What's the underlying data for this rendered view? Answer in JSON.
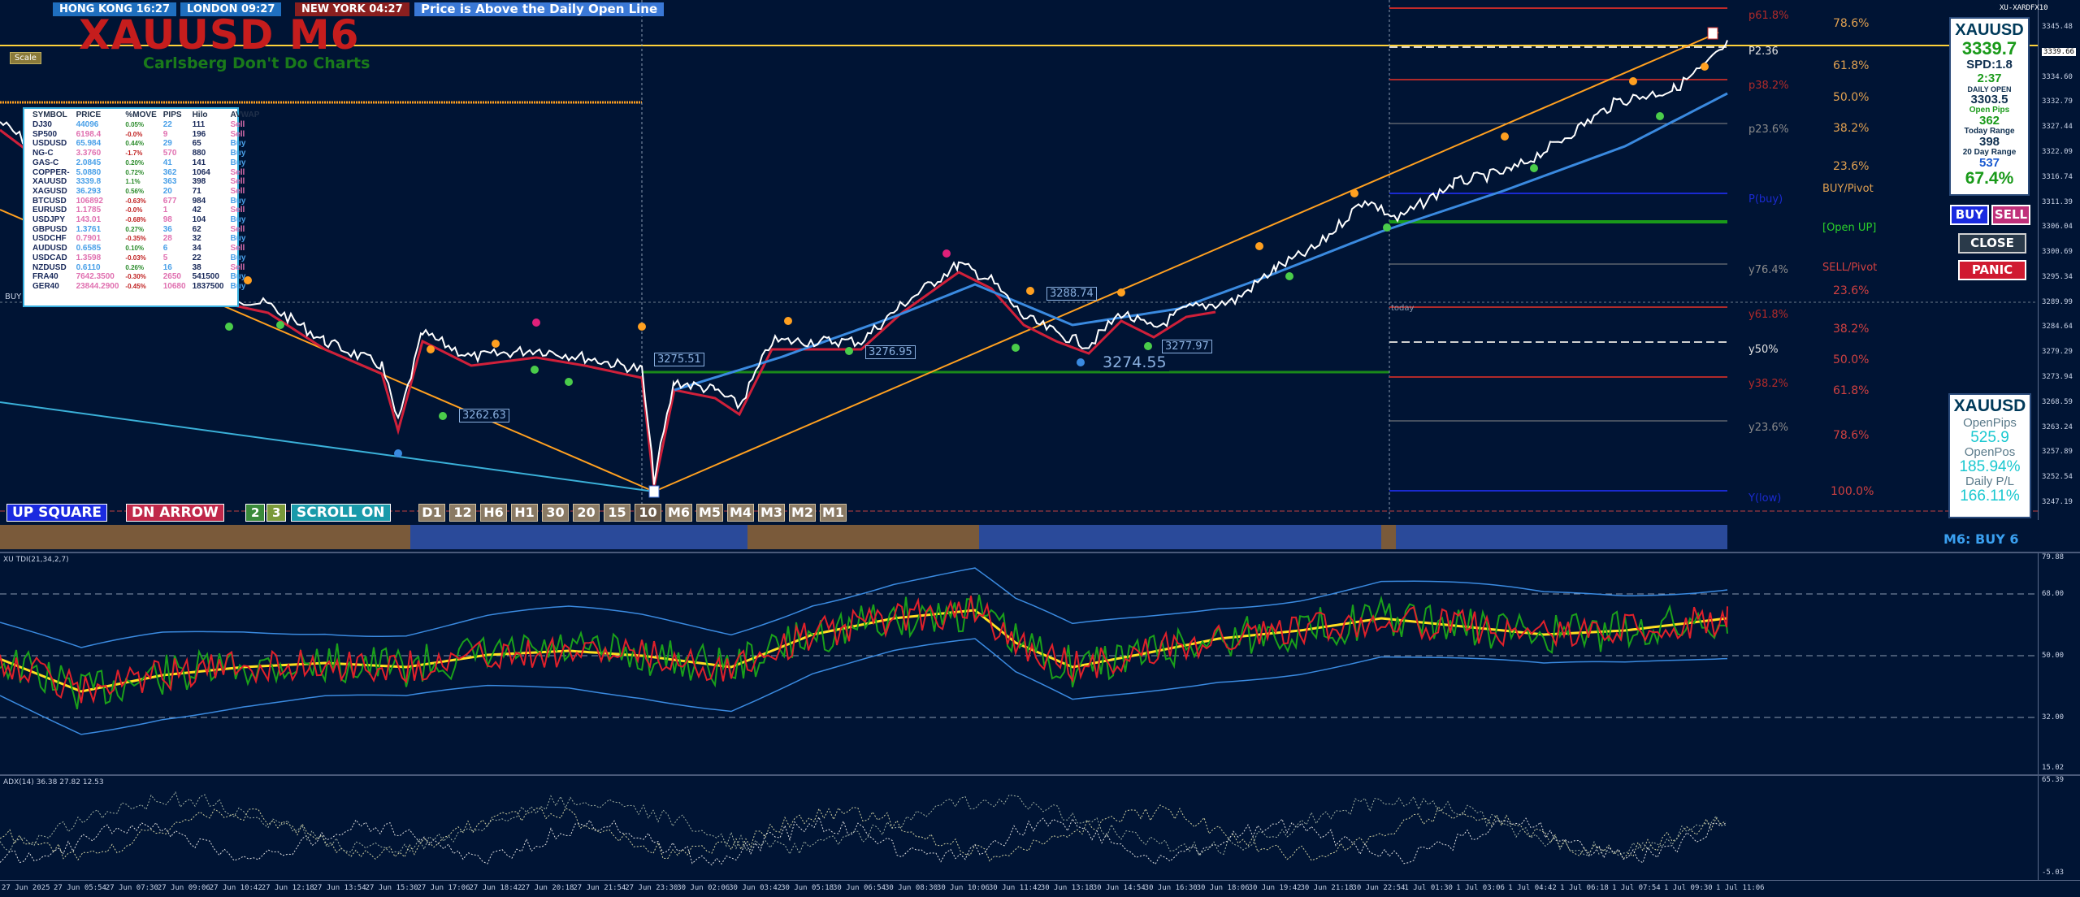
{
  "sessions": {
    "hong_kong": "HONG KONG 16:27",
    "london": "LONDON  09:27",
    "new_york": "NEW YORK  04:27",
    "message": "Price is Above the Daily Open Line"
  },
  "title": {
    "symbol_tf": "XAUUSD M6",
    "subtitle": "Carlsberg Don't Do Charts",
    "scale_btn": "Scale"
  },
  "broker": "XU-XARDFX10",
  "watchlist": {
    "headers": [
      "SYMBOL",
      "PRICE",
      "%MOVE",
      "PIPS",
      "Hilo",
      "AVWAP"
    ],
    "rows": [
      {
        "sym": "DJ30",
        "price": "44096",
        "move": "0.05%",
        "pips": "22",
        "hilo": "111",
        "avwap": "Sell",
        "dir": "b",
        "neg": false
      },
      {
        "sym": "SP500",
        "price": "6198.4",
        "move": "-0.0%",
        "pips": "9",
        "hilo": "196",
        "avwap": "Sell",
        "dir": "s",
        "neg": true
      },
      {
        "sym": "USDUSD",
        "price": "65.984",
        "move": "0.44%",
        "pips": "29",
        "hilo": "65",
        "avwap": "Buy",
        "dir": "b",
        "neg": false
      },
      {
        "sym": "NG-C",
        "price": "3.3760",
        "move": "-1.7%",
        "pips": "570",
        "hilo": "880",
        "avwap": "Buy",
        "dir": "s",
        "neg": true
      },
      {
        "sym": "GAS-C",
        "price": "2.0845",
        "move": "0.20%",
        "pips": "41",
        "hilo": "141",
        "avwap": "Buy",
        "dir": "b",
        "neg": false
      },
      {
        "sym": "COPPER-",
        "price": "5.0880",
        "move": "0.72%",
        "pips": "362",
        "hilo": "1064",
        "avwap": "Sell",
        "dir": "b",
        "neg": false
      },
      {
        "sym": "XAUUSD",
        "price": "3339.8",
        "move": "1.1%",
        "pips": "363",
        "hilo": "398",
        "avwap": "Sell",
        "dir": "b",
        "neg": false
      },
      {
        "sym": "XAGUSD",
        "price": "36.293",
        "move": "0.56%",
        "pips": "20",
        "hilo": "71",
        "avwap": "Sell",
        "dir": "b",
        "neg": false
      },
      {
        "sym": "BTCUSD",
        "price": "106892",
        "move": "-0.63%",
        "pips": "677",
        "hilo": "984",
        "avwap": "Buy",
        "dir": "s",
        "neg": true
      },
      {
        "sym": "EURUSD",
        "price": "1.1785",
        "move": "-0.0%",
        "pips": "1",
        "hilo": "42",
        "avwap": "Sell",
        "dir": "s",
        "neg": true
      },
      {
        "sym": "USDJPY",
        "price": "143.01",
        "move": "-0.68%",
        "pips": "98",
        "hilo": "104",
        "avwap": "Buy",
        "dir": "s",
        "neg": true
      },
      {
        "sym": "GBPUSD",
        "price": "1.3761",
        "move": "0.27%",
        "pips": "36",
        "hilo": "62",
        "avwap": "Sell",
        "dir": "b",
        "neg": false
      },
      {
        "sym": "USDCHF",
        "price": "0.7901",
        "move": "-0.35%",
        "pips": "28",
        "hilo": "32",
        "avwap": "Buy",
        "dir": "s",
        "neg": true
      },
      {
        "sym": "AUDUSD",
        "price": "0.6585",
        "move": "0.10%",
        "pips": "6",
        "hilo": "34",
        "avwap": "Sell",
        "dir": "b",
        "neg": false
      },
      {
        "sym": "USDCAD",
        "price": "1.3598",
        "move": "-0.03%",
        "pips": "5",
        "hilo": "22",
        "avwap": "Buy",
        "dir": "s",
        "neg": true
      },
      {
        "sym": "NZDUSD",
        "price": "0.6110",
        "move": "0.26%",
        "pips": "16",
        "hilo": "38",
        "avwap": "Sell",
        "dir": "b",
        "neg": false
      },
      {
        "sym": "FRA40",
        "price": "7642.3500",
        "move": "-0.30%",
        "pips": "2650",
        "hilo": "541500",
        "avwap": "Buy",
        "dir": "s",
        "neg": true
      },
      {
        "sym": "GER40",
        "price": "23844.2900",
        "move": "-0.45%",
        "pips": "10680",
        "hilo": "1837500",
        "avwap": "Buy",
        "dir": "s",
        "neg": true
      }
    ]
  },
  "toolbar": {
    "up_square": "UP SQUARE",
    "dn_arrow": "DN ARROW",
    "n2": "2",
    "n3": "3",
    "scroll": "SCROLL ON",
    "timeframes": [
      "D1",
      "12",
      "H6",
      "H1",
      "30",
      "20",
      "15",
      "10",
      "M6",
      "M5",
      "M4",
      "M3",
      "M2",
      "M1"
    ]
  },
  "price_labels": {
    "p1": "3262.63",
    "p2": "3275.51",
    "p3": "3276.95",
    "p4": "3288.74",
    "p5": "3274.55",
    "p6": "3277.97",
    "buy_marker": "BUY"
  },
  "fib_left": [
    "78.6%",
    "61.8%",
    "50.0%",
    "38.2%",
    "23.6%",
    "BUY/Pivot",
    "[Open UP]",
    "SELL/Pivot",
    "23.6%",
    "38.2%",
    "50.0%",
    "61.8%",
    "78.6%",
    "100.0%"
  ],
  "fib_right_labels": {
    "p618": "p61.8%",
    "p382": "p38.2%",
    "p236": "p23.6%",
    "pbuy": "P(buy)",
    "y764": "y76.4%",
    "y618": "y61.8%",
    "y50": "y50%",
    "y382": "y38.2%",
    "y236": "y23.6%",
    "ylow": "Y(low)",
    "today": "today",
    "p236_alt": "P2.36"
  },
  "price_axis": [
    "3345.48",
    "3339.66",
    "3334.60",
    "3332.79",
    "3327.44",
    "3322.09",
    "3316.74",
    "3311.39",
    "3306.04",
    "3300.69",
    "3295.34",
    "3289.99",
    "3284.64",
    "3279.29",
    "3273.94",
    "3268.59",
    "3263.24",
    "3257.89",
    "3252.54",
    "3247.19"
  ],
  "info_panel": {
    "symbol": "XAUUSD",
    "price": "3339.7",
    "spd": "SPD:1.8",
    "time": "2:37",
    "daily_open_label": "DAILY OPEN",
    "daily_open": "3303.5",
    "open_pips_label": "Open Pips",
    "open_pips": "362",
    "today_range_label": "Today Range",
    "today_range": "398",
    "range20_label": "20 Day Range",
    "range20": "537",
    "pct": "67.4%"
  },
  "buttons": {
    "buy": "BUY",
    "sell": "SELL",
    "close": "CLOSE",
    "panic": "PANIC"
  },
  "info_panel2": {
    "symbol": "XAUUSD",
    "open_pips_label": "OpenPips",
    "open_pips": "525.9",
    "open_pos_label": "OpenPos",
    "open_pos": "185.94%",
    "daily_pl_label": "Daily P/L",
    "daily_pl": "166.11%"
  },
  "status_bar": {
    "signal": "M6: BUY 6"
  },
  "indicator1": {
    "label": "XU TDI(21,34,2,7)",
    "axis": [
      "79.88",
      "68.00",
      "50.00",
      "32.00",
      "15.02"
    ]
  },
  "indicator2": {
    "label": "ADX(14) 36.38 27.82 12.53",
    "axis": [
      "65.39",
      "-5.03"
    ]
  },
  "time_axis": [
    "27 Jun 2025",
    "27 Jun 05:54",
    "27 Jun 07:30",
    "27 Jun 09:06",
    "27 Jun 10:42",
    "27 Jun 12:18",
    "27 Jun 13:54",
    "27 Jun 15:30",
    "27 Jun 17:06",
    "27 Jun 18:42",
    "27 Jun 20:18",
    "27 Jun 21:54",
    "27 Jun 23:30",
    "30 Jun 02:06",
    "30 Jun 03:42",
    "30 Jun 05:18",
    "30 Jun 06:54",
    "30 Jun 08:30",
    "30 Jun 10:06",
    "30 Jun 11:42",
    "30 Jun 13:18",
    "30 Jun 14:54",
    "30 Jun 16:30",
    "30 Jun 18:06",
    "30 Jun 19:42",
    "30 Jun 21:18",
    "30 Jun 22:54",
    "1 Jul 01:30",
    "1 Jul 03:06",
    "1 Jul 04:42",
    "1 Jul 06:18",
    "1 Jul 07:54",
    "1 Jul 09:30",
    "1 Jul 11:06"
  ],
  "colors": {
    "bg": "#001434",
    "up": "#ffffff",
    "down": "#e0509a",
    "ma_red": "#d0203a",
    "ma_blue": "#3a8ae0",
    "trend": "#ffa020",
    "green": "#1a8a1a"
  }
}
